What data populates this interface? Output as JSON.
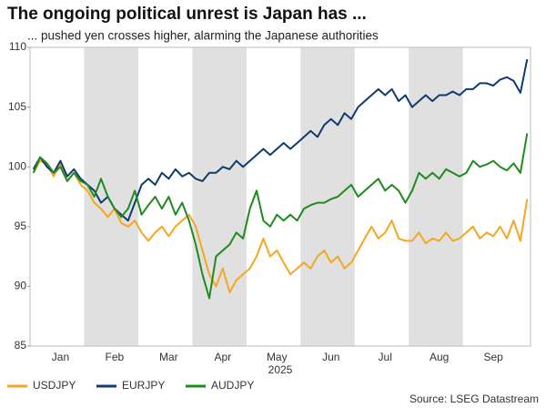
{
  "chart_data": {
    "type": "line",
    "title": "The ongoing political unrest is Japan has ...",
    "subtitle": "... pushed yen crosses higher, alarming the Japanese authorities",
    "xlabel": "2025",
    "source": "Source: LSEG Datastream",
    "categories": [
      null,
      null,
      null,
      null,
      "Jan",
      null,
      null,
      null,
      null,
      null,
      null,
      null,
      "Feb",
      null,
      null,
      null,
      null,
      null,
      null,
      null,
      "Mar",
      null,
      null,
      null,
      null,
      null,
      null,
      null,
      "Apr",
      null,
      null,
      null,
      null,
      null,
      null,
      null,
      "May",
      null,
      null,
      null,
      null,
      null,
      null,
      null,
      "Jun",
      null,
      null,
      null,
      null,
      null,
      null,
      null,
      "Jul",
      null,
      null,
      null,
      null,
      null,
      null,
      null,
      "Aug",
      null,
      null,
      null,
      null,
      null,
      null,
      null,
      "Sep",
      null,
      null,
      null,
      null,
      null
    ],
    "series": [
      {
        "name": "USDJPY",
        "color": "#f5a623",
        "values": [
          99.5,
          100.5,
          100.2,
          99.2,
          100.3,
          98.8,
          99.5,
          98.5,
          98.0,
          97.0,
          96.5,
          95.8,
          96.5,
          95.3,
          95.0,
          95.5,
          94.5,
          93.8,
          94.5,
          95.0,
          94.2,
          95.0,
          95.5,
          96.0,
          95.0,
          93.0,
          91.0,
          90.0,
          91.5,
          89.5,
          90.5,
          91.0,
          91.5,
          92.5,
          94.0,
          92.5,
          93.0,
          92.0,
          91.0,
          91.5,
          92.0,
          91.5,
          92.5,
          93.0,
          92.0,
          92.5,
          91.5,
          92.0,
          93.0,
          94.0,
          95.0,
          94.0,
          94.5,
          95.5,
          94.0,
          93.8,
          93.8,
          94.5,
          93.6,
          94.0,
          93.8,
          94.5,
          93.8,
          94.0,
          94.5,
          95.0,
          94.0,
          94.5,
          94.2,
          95.0,
          94.0,
          95.5,
          93.8,
          97.3
        ]
      },
      {
        "name": "EURJPY",
        "color": "#0f3b6e",
        "values": [
          99.8,
          100.8,
          100.0,
          99.5,
          100.5,
          99.2,
          99.8,
          99.0,
          98.5,
          98.0,
          97.0,
          97.5,
          96.5,
          96.0,
          95.5,
          97.0,
          98.5,
          99.0,
          98.5,
          99.5,
          99.0,
          99.8,
          99.2,
          99.5,
          99.0,
          98.8,
          99.5,
          99.5,
          100.0,
          99.8,
          100.5,
          100.0,
          100.5,
          101.0,
          101.5,
          101.0,
          101.5,
          102.0,
          101.5,
          102.0,
          102.5,
          103.0,
          102.5,
          103.5,
          104.0,
          103.5,
          104.5,
          104.0,
          105.0,
          105.5,
          106.0,
          106.5,
          106.0,
          106.5,
          105.5,
          106.0,
          105.0,
          105.5,
          106.0,
          105.5,
          106.0,
          106.0,
          106.3,
          106.0,
          106.5,
          106.5,
          107.0,
          107.0,
          106.8,
          107.3,
          107.5,
          107.2,
          106.2,
          109.0
        ]
      },
      {
        "name": "AUDJPY",
        "color": "#1f8a1f",
        "values": [
          99.5,
          100.8,
          100.3,
          99.5,
          100.0,
          98.8,
          99.5,
          98.8,
          98.5,
          97.5,
          99.0,
          97.5,
          96.5,
          95.8,
          96.5,
          98.0,
          96.0,
          96.8,
          97.5,
          96.5,
          97.5,
          96.0,
          97.0,
          95.5,
          93.5,
          91.0,
          89.0,
          92.5,
          93.0,
          93.5,
          94.5,
          94.0,
          96.5,
          98.0,
          95.5,
          95.0,
          96.0,
          95.5,
          96.0,
          95.5,
          96.5,
          96.8,
          97.0,
          97.0,
          97.3,
          97.5,
          98.0,
          98.5,
          97.5,
          98.0,
          98.5,
          99.0,
          98.0,
          98.5,
          98.0,
          97.0,
          98.0,
          99.5,
          99.0,
          99.5,
          99.0,
          99.8,
          99.5,
          99.2,
          99.5,
          100.5,
          100.0,
          100.2,
          100.5,
          100.0,
          99.7,
          100.3,
          99.5,
          102.8
        ]
      }
    ],
    "ylim": [
      85,
      110
    ],
    "yticks": [
      85,
      90,
      95,
      100,
      105,
      110
    ],
    "shade_alternate_months": true,
    "band_color": "#e0e0e0",
    "legend": "bottom"
  }
}
